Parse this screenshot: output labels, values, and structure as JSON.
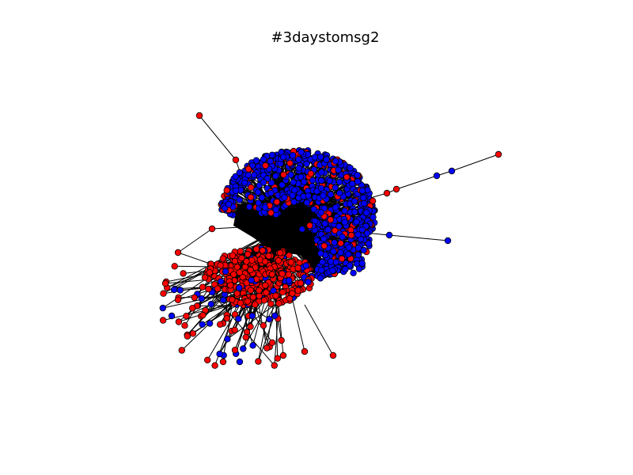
{
  "figure": {
    "title": "#3daystomsg2"
  },
  "legend_colors": {
    "red_nodes": "#ff0000",
    "blue_nodes": "#0000ff",
    "edges": "#000000"
  }
}
